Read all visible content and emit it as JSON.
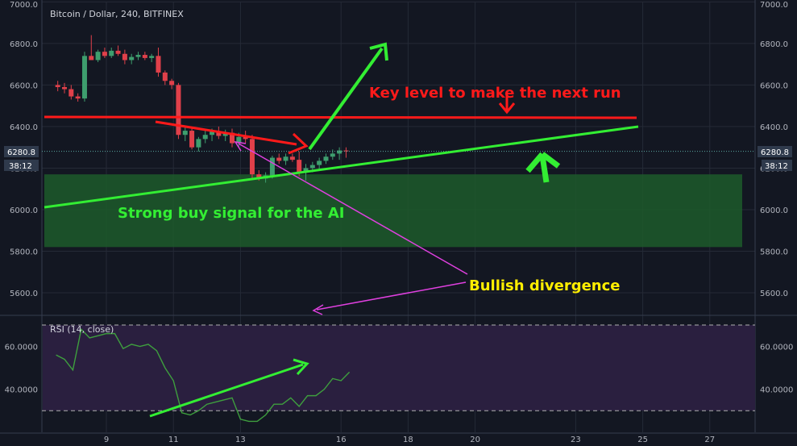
{
  "header": {
    "title": "Bitcoin / Dollar, 240, BITFINEX"
  },
  "rsi_label": "RSI (14, close)",
  "price_tags": {
    "last": "6280.8",
    "countdown": "38:12"
  },
  "annotations": {
    "key_level": "Key level to make the next run",
    "buy_signal": "Strong buy signal for the AI",
    "divergence": "Bullish divergence"
  },
  "colors": {
    "background": "#131722",
    "grid": "#252a36",
    "up": "#3e9e6e",
    "down": "#e0404a",
    "red_line": "#ff1a1a",
    "green_line": "#33ee33",
    "zone": "#1d5a2a",
    "rsi_band": "#2a1f3f",
    "rsi_line": "#3e9e3e",
    "magenta": "#e040e0",
    "yellow": "#ffee00",
    "tag": "#2f3a4c"
  },
  "chart_data": [
    {
      "type": "candlestick",
      "title": "Bitcoin / Dollar, 240, BITFINEX",
      "x_ticks": [
        "9",
        "11",
        "13",
        "16",
        "18",
        "20",
        "23",
        "25",
        "27"
      ],
      "y_ticks": [
        "7000.0",
        "6800.0",
        "6600.0",
        "6400.0",
        "6200.0",
        "6000.0",
        "5800.0",
        "5600.0"
      ],
      "ylim": [
        5480,
        7000
      ],
      "last_price": 6280.8,
      "candles": [
        {
          "x": 7.55,
          "o": 6600,
          "h": 6620,
          "l": 6570,
          "c": 6590
        },
        {
          "x": 7.75,
          "o": 6590,
          "h": 6610,
          "l": 6560,
          "c": 6580
        },
        {
          "x": 7.95,
          "o": 6580,
          "h": 6600,
          "l": 6530,
          "c": 6545
        },
        {
          "x": 8.15,
          "o": 6545,
          "h": 6560,
          "l": 6520,
          "c": 6535
        },
        {
          "x": 8.35,
          "o": 6535,
          "h": 6760,
          "l": 6520,
          "c": 6740
        },
        {
          "x": 8.55,
          "o": 6740,
          "h": 6840,
          "l": 6720,
          "c": 6720
        },
        {
          "x": 8.75,
          "o": 6720,
          "h": 6770,
          "l": 6710,
          "c": 6760
        },
        {
          "x": 8.95,
          "o": 6760,
          "h": 6780,
          "l": 6730,
          "c": 6740
        },
        {
          "x": 9.15,
          "o": 6740,
          "h": 6780,
          "l": 6730,
          "c": 6765
        },
        {
          "x": 9.35,
          "o": 6765,
          "h": 6790,
          "l": 6740,
          "c": 6750
        },
        {
          "x": 9.55,
          "o": 6750,
          "h": 6770,
          "l": 6700,
          "c": 6720
        },
        {
          "x": 9.75,
          "o": 6720,
          "h": 6750,
          "l": 6700,
          "c": 6735
        },
        {
          "x": 9.95,
          "o": 6735,
          "h": 6760,
          "l": 6720,
          "c": 6745
        },
        {
          "x": 10.15,
          "o": 6745,
          "h": 6760,
          "l": 6720,
          "c": 6730
        },
        {
          "x": 10.35,
          "o": 6730,
          "h": 6750,
          "l": 6710,
          "c": 6740
        },
        {
          "x": 10.55,
          "o": 6740,
          "h": 6780,
          "l": 6640,
          "c": 6660
        },
        {
          "x": 10.75,
          "o": 6660,
          "h": 6670,
          "l": 6600,
          "c": 6620
        },
        {
          "x": 10.95,
          "o": 6620,
          "h": 6630,
          "l": 6580,
          "c": 6600
        },
        {
          "x": 11.15,
          "o": 6600,
          "h": 6610,
          "l": 6340,
          "c": 6360
        },
        {
          "x": 11.35,
          "o": 6360,
          "h": 6400,
          "l": 6330,
          "c": 6380
        },
        {
          "x": 11.55,
          "o": 6380,
          "h": 6390,
          "l": 6290,
          "c": 6300
        },
        {
          "x": 11.75,
          "o": 6300,
          "h": 6350,
          "l": 6280,
          "c": 6340
        },
        {
          "x": 11.95,
          "o": 6340,
          "h": 6390,
          "l": 6320,
          "c": 6360
        },
        {
          "x": 12.15,
          "o": 6360,
          "h": 6390,
          "l": 6330,
          "c": 6375
        },
        {
          "x": 12.35,
          "o": 6375,
          "h": 6400,
          "l": 6340,
          "c": 6355
        },
        {
          "x": 12.55,
          "o": 6355,
          "h": 6385,
          "l": 6330,
          "c": 6370
        },
        {
          "x": 12.75,
          "o": 6370,
          "h": 6390,
          "l": 6300,
          "c": 6320
        },
        {
          "x": 12.95,
          "o": 6320,
          "h": 6370,
          "l": 6300,
          "c": 6350
        },
        {
          "x": 13.15,
          "o": 6350,
          "h": 6380,
          "l": 6320,
          "c": 6340
        },
        {
          "x": 13.35,
          "o": 6340,
          "h": 6360,
          "l": 6150,
          "c": 6170
        },
        {
          "x": 13.55,
          "o": 6170,
          "h": 6190,
          "l": 6140,
          "c": 6150
        },
        {
          "x": 13.75,
          "o": 6150,
          "h": 6180,
          "l": 6130,
          "c": 6165
        },
        {
          "x": 13.95,
          "o": 6165,
          "h": 6260,
          "l": 6150,
          "c": 6250
        },
        {
          "x": 14.15,
          "o": 6250,
          "h": 6270,
          "l": 6220,
          "c": 6235
        },
        {
          "x": 14.35,
          "o": 6235,
          "h": 6270,
          "l": 6215,
          "c": 6255
        },
        {
          "x": 14.55,
          "o": 6255,
          "h": 6270,
          "l": 6230,
          "c": 6240
        },
        {
          "x": 14.75,
          "o": 6240,
          "h": 6280,
          "l": 6160,
          "c": 6180
        },
        {
          "x": 14.95,
          "o": 6180,
          "h": 6220,
          "l": 6140,
          "c": 6200
        },
        {
          "x": 15.15,
          "o": 6200,
          "h": 6230,
          "l": 6180,
          "c": 6215
        },
        {
          "x": 15.35,
          "o": 6215,
          "h": 6250,
          "l": 6190,
          "c": 6235
        },
        {
          "x": 15.55,
          "o": 6235,
          "h": 6270,
          "l": 6220,
          "c": 6255
        },
        {
          "x": 15.75,
          "o": 6255,
          "h": 6290,
          "l": 6240,
          "c": 6270
        },
        {
          "x": 15.95,
          "o": 6270,
          "h": 6300,
          "l": 6240,
          "c": 6285
        },
        {
          "x": 16.15,
          "o": 6285,
          "h": 6300,
          "l": 6250,
          "c": 6281
        }
      ]
    },
    {
      "type": "line",
      "title": "RSI (14, close)",
      "y_ticks": [
        "60.0000",
        "40.0000"
      ],
      "ylim": [
        20,
        75
      ],
      "bands": [
        30,
        70
      ],
      "x": [
        7.5,
        7.75,
        8.0,
        8.25,
        8.5,
        8.75,
        9.0,
        9.25,
        9.5,
        9.75,
        10.0,
        10.25,
        10.5,
        10.75,
        11.0,
        11.25,
        11.5,
        11.75,
        12.0,
        12.25,
        12.5,
        12.75,
        13.0,
        13.25,
        13.5,
        13.75,
        14.0,
        14.25,
        14.5,
        14.75,
        15.0,
        15.25,
        15.5,
        15.75,
        16.0,
        16.25
      ],
      "y": [
        56,
        54,
        49,
        68,
        64,
        65,
        66,
        66,
        59,
        61,
        60,
        61,
        58,
        50,
        44,
        29,
        28,
        30,
        33,
        34,
        35,
        36,
        26,
        25,
        25,
        28,
        33,
        33,
        36,
        32,
        37,
        37,
        40,
        45,
        44,
        48
      ]
    }
  ]
}
